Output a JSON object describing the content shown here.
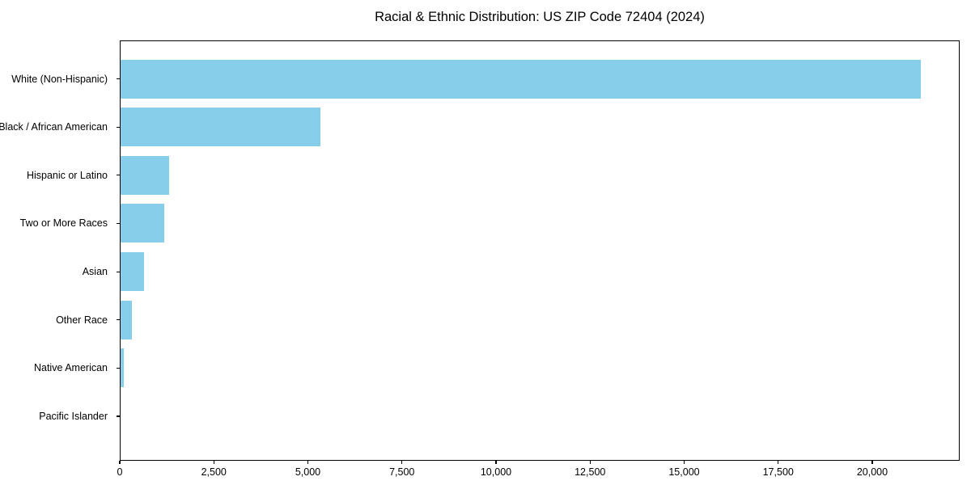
{
  "chart_data": {
    "type": "bar",
    "orientation": "horizontal",
    "title": "Racial & Ethnic Distribution: US ZIP Code 72404 (2024)",
    "categories": [
      "White (Non-Hispanic)",
      "Black / African American",
      "Hispanic or Latino",
      "Two or More Races",
      "Asian",
      "Other Race",
      "Native American",
      "Pacific Islander"
    ],
    "values": [
      21260,
      5320,
      1290,
      1160,
      620,
      300,
      80,
      0
    ],
    "xlabel": "",
    "ylabel": "",
    "x_ticks": [
      0,
      2500,
      5000,
      7500,
      10000,
      12500,
      15000,
      17500,
      20000
    ],
    "x_tick_labels": [
      "0",
      "2,500",
      "5,000",
      "7,500",
      "10,000",
      "12,500",
      "15,000",
      "17,500",
      "20,000"
    ],
    "xlim": [
      0,
      22323
    ],
    "grid": false,
    "legend": null,
    "bar_color": "#87CEEB",
    "axis_color": "#000000",
    "text_color": "#000000",
    "background_color": "#ffffff"
  }
}
